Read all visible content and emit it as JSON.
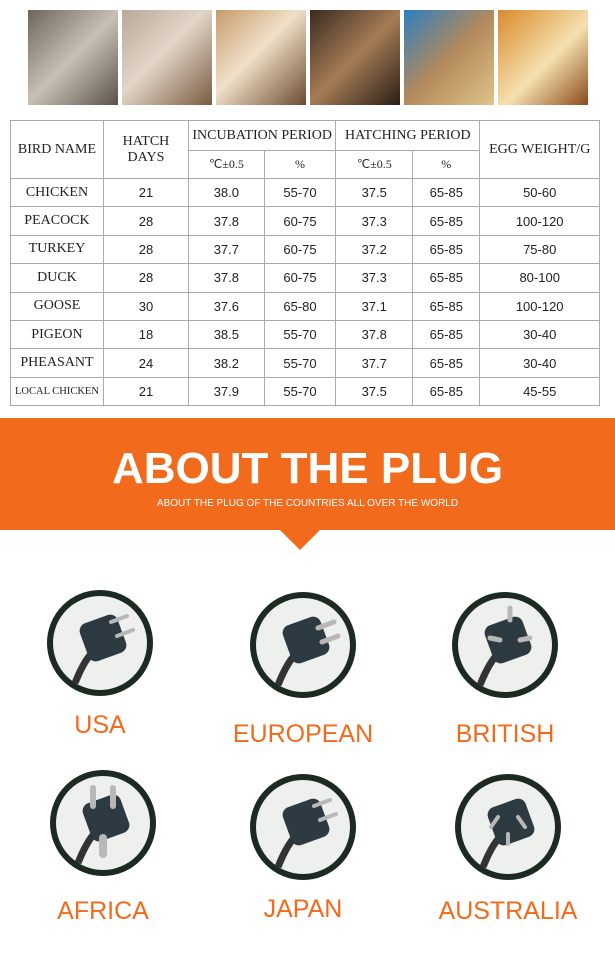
{
  "table": {
    "header": {
      "bird_name": "BIRD NAME",
      "hatch_days": "HATCH DAYS",
      "incubation_period": "INCUBATION PERIOD",
      "hatching_period": "HATCHING PERIOD",
      "egg_weight": "EGG WEIGHT/G",
      "sub": [
        "℃±0.5",
        "%",
        "℃±0.5",
        "%"
      ]
    },
    "rows": [
      [
        "CHICKEN",
        "21",
        "38.0",
        "55-70",
        "37.5",
        "65-85",
        "50-60"
      ],
      [
        "PEACOCK",
        "28",
        "37.8",
        "60-75",
        "37.3",
        "65-85",
        "100-120"
      ],
      [
        "TURKEY",
        "28",
        "37.7",
        "60-75",
        "37.2",
        "65-85",
        "75-80"
      ],
      [
        "DUCK",
        "28",
        "37.8",
        "60-75",
        "37.3",
        "65-85",
        "80-100"
      ],
      [
        "GOOSE",
        "30",
        "37.6",
        "65-80",
        "37.1",
        "65-85",
        "100-120"
      ],
      [
        "PIGEON",
        "18",
        "38.5",
        "55-70",
        "37.8",
        "65-85",
        "30-40"
      ],
      [
        "PHEASANT",
        "24",
        "38.2",
        "55-70",
        "37.7",
        "65-85",
        "30-40"
      ],
      [
        "LOCAL CHICKEN",
        "21",
        "37.9",
        "55-70",
        "37.5",
        "65-85",
        "45-55"
      ]
    ]
  },
  "banner": {
    "title": "ABOUT THE PLUG",
    "subtitle": "ABOUT THE PLUG OF THE COUNTRIES ALL OVER THE WORLD"
  },
  "plugs": [
    {
      "label": "USA"
    },
    {
      "label": "EUROPEAN"
    },
    {
      "label": "BRITISH"
    },
    {
      "label": "AFRICA"
    },
    {
      "label": "JAPAN"
    },
    {
      "label": "AUSTRALIA"
    }
  ]
}
